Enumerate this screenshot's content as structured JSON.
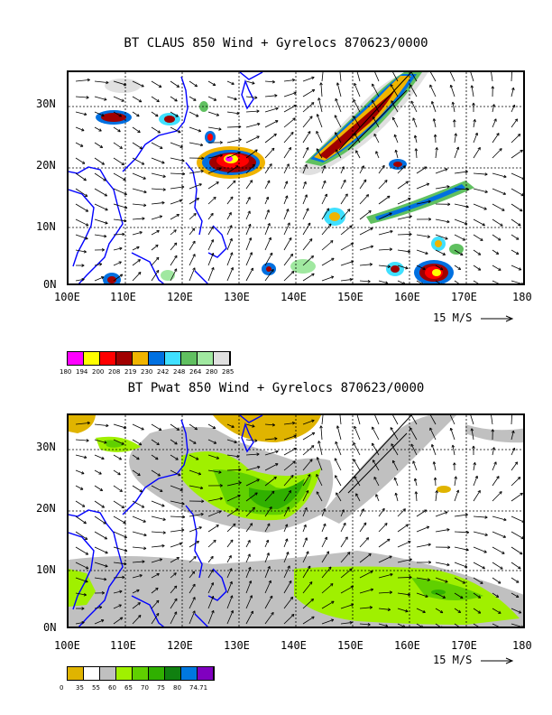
{
  "top_panel": {
    "title": "BT CLAUS 850 Wind + Gyrelocs 870623/0000",
    "y_ticks": [
      "30N",
      "20N",
      "10N",
      "0N"
    ],
    "x_ticks": [
      "100E",
      "110E",
      "120E",
      "130E",
      "140E",
      "150E",
      "160E",
      "170E",
      "180"
    ],
    "vector_scale_label": "15 M/S",
    "colorbar": {
      "colors": [
        "#ff00ff",
        "#ffff00",
        "#ff0000",
        "#a00000",
        "#f0b400",
        "#0070e0",
        "#40e0ff",
        "#60c060",
        "#a0e8a0",
        "#e0e0e0"
      ],
      "labels": [
        "180",
        "194",
        "200",
        "208",
        "219",
        "230",
        "242",
        "248",
        "264",
        "280",
        "285"
      ]
    }
  },
  "bottom_panel": {
    "title": "BT Pwat 850 Wind + Gyrelocs 870623/0000",
    "y_ticks": [
      "30N",
      "20N",
      "10N",
      "0N"
    ],
    "x_ticks": [
      "100E",
      "110E",
      "120E",
      "130E",
      "140E",
      "150E",
      "160E",
      "170E",
      "180"
    ],
    "vector_scale_label": "15 M/S",
    "colorbar": {
      "colors": [
        "#e0b400",
        "#ffffff",
        "#c0c0c0",
        "#a0f000",
        "#60d000",
        "#30b000",
        "#108010",
        "#0078e0",
        "#8000c0"
      ],
      "labels": [
        "0",
        "35",
        "55",
        "60",
        "65",
        "70",
        "75",
        "80",
        "74.71"
      ]
    }
  }
}
